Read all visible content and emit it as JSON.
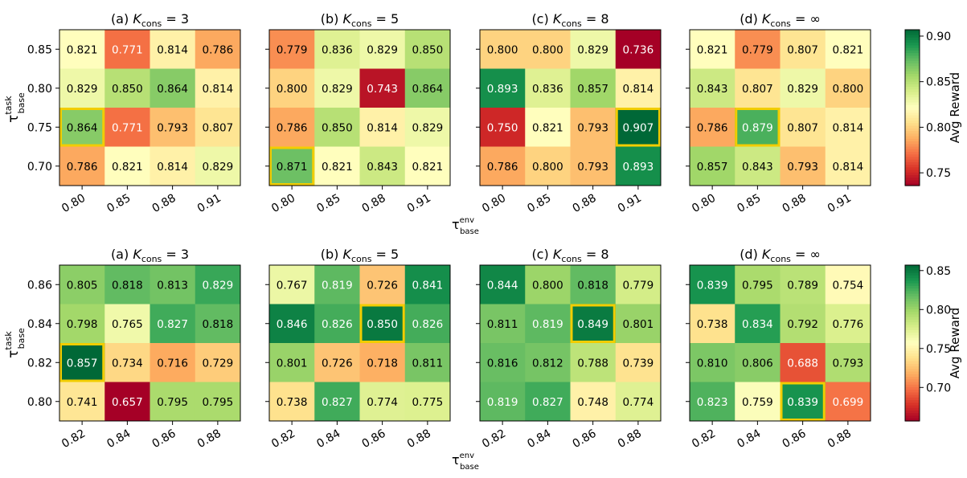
{
  "chart_data": {
    "type": "heatmap",
    "colormap": "RdYlGn",
    "highlight_color": "#f2cd00",
    "rows": [
      {
        "ylabel_main": "τ",
        "ylabel_sup": "task",
        "ylabel_sub": "base",
        "xlabel_main": "τ",
        "xlabel_sup": "env",
        "xlabel_sub": "base",
        "colorbar_label": "Avg Reward",
        "vmin": 0.736,
        "vmax": 0.907,
        "colorbar_ticks": [
          0.75,
          0.8,
          0.85,
          0.9
        ],
        "colorbar_tick_labels": [
          "0.75",
          "0.80",
          "0.85",
          "0.90"
        ],
        "x_ticks": [
          "0.80",
          "0.85",
          "0.88",
          "0.91"
        ],
        "y_ticks": [
          "0.85",
          "0.80",
          "0.75",
          "0.70"
        ],
        "panels": [
          {
            "title_prefix": "(a) ",
            "title_k": "K",
            "title_sub": "cons",
            "title_suffix": " = 3",
            "values": [
              [
                0.821,
                0.771,
                0.814,
                0.786
              ],
              [
                0.829,
                0.85,
                0.864,
                0.814
              ],
              [
                0.864,
                0.771,
                0.793,
                0.807
              ],
              [
                0.786,
                0.821,
                0.814,
                0.829
              ]
            ],
            "highlight": [
              2,
              0
            ]
          },
          {
            "title_prefix": "(b) ",
            "title_k": "K",
            "title_sub": "cons",
            "title_suffix": " = 5",
            "values": [
              [
                0.779,
                0.836,
                0.829,
                0.85
              ],
              [
                0.8,
                0.829,
                0.743,
                0.864
              ],
              [
                0.786,
                0.85,
                0.814,
                0.829
              ],
              [
                0.871,
                0.821,
                0.843,
                0.821
              ]
            ],
            "highlight": [
              3,
              0
            ]
          },
          {
            "title_prefix": "(c) ",
            "title_k": "K",
            "title_sub": "cons",
            "title_suffix": " = 8",
            "values": [
              [
                0.8,
                0.8,
                0.829,
                0.736
              ],
              [
                0.893,
                0.836,
                0.857,
                0.814
              ],
              [
                0.75,
                0.821,
                0.793,
                0.907
              ],
              [
                0.786,
                0.8,
                0.793,
                0.893
              ]
            ],
            "highlight": [
              2,
              3
            ]
          },
          {
            "title_prefix": "(d) ",
            "title_k": "K",
            "title_sub": "cons",
            "title_suffix": " = ∞",
            "values": [
              [
                0.821,
                0.779,
                0.807,
                0.821
              ],
              [
                0.843,
                0.807,
                0.829,
                0.8
              ],
              [
                0.786,
                0.879,
                0.807,
                0.814
              ],
              [
                0.857,
                0.843,
                0.793,
                0.814
              ]
            ],
            "highlight": [
              2,
              1
            ]
          }
        ]
      },
      {
        "ylabel_main": "τ",
        "ylabel_sup": "task",
        "ylabel_sub": "base",
        "xlabel_main": "τ",
        "xlabel_sup": "env",
        "xlabel_sub": "base",
        "colorbar_label": "Avg Reward",
        "vmin": 0.657,
        "vmax": 0.857,
        "colorbar_ticks": [
          0.7,
          0.75,
          0.8,
          0.85
        ],
        "colorbar_tick_labels": [
          "0.70",
          "0.75",
          "0.80",
          "0.85"
        ],
        "x_ticks": [
          "0.82",
          "0.84",
          "0.86",
          "0.88"
        ],
        "y_ticks": [
          "0.86",
          "0.84",
          "0.82",
          "0.80"
        ],
        "panels": [
          {
            "title_prefix": "(a) ",
            "title_k": "K",
            "title_sub": "cons",
            "title_suffix": " = 3",
            "values": [
              [
                0.805,
                0.818,
                0.813,
                0.829
              ],
              [
                0.798,
                0.765,
                0.827,
                0.818
              ],
              [
                0.857,
                0.734,
                0.716,
                0.729
              ],
              [
                0.741,
                0.657,
                0.795,
                0.795
              ]
            ],
            "highlight": [
              2,
              0
            ]
          },
          {
            "title_prefix": "(b) ",
            "title_k": "K",
            "title_sub": "cons",
            "title_suffix": " = 5",
            "values": [
              [
                0.767,
                0.819,
                0.726,
                0.841
              ],
              [
                0.846,
                0.826,
                0.85,
                0.826
              ],
              [
                0.801,
                0.726,
                0.718,
                0.811
              ],
              [
                0.738,
                0.827,
                0.774,
                0.775
              ]
            ],
            "highlight": [
              1,
              2
            ]
          },
          {
            "title_prefix": "(c) ",
            "title_k": "K",
            "title_sub": "cons",
            "title_suffix": " = 8",
            "values": [
              [
                0.844,
                0.8,
                0.818,
                0.779
              ],
              [
                0.811,
                0.819,
                0.849,
                0.801
              ],
              [
                0.816,
                0.812,
                0.788,
                0.739
              ],
              [
                0.819,
                0.827,
                0.748,
                0.774
              ]
            ],
            "highlight": [
              1,
              2
            ]
          },
          {
            "title_prefix": "(d) ",
            "title_k": "K",
            "title_sub": "cons",
            "title_suffix": " = ∞",
            "values": [
              [
                0.839,
                0.795,
                0.789,
                0.754
              ],
              [
                0.738,
                0.834,
                0.792,
                0.776
              ],
              [
                0.81,
                0.806,
                0.688,
                0.793
              ],
              [
                0.823,
                0.759,
                0.839,
                0.699
              ]
            ],
            "highlight": [
              3,
              2
            ]
          }
        ]
      }
    ]
  }
}
